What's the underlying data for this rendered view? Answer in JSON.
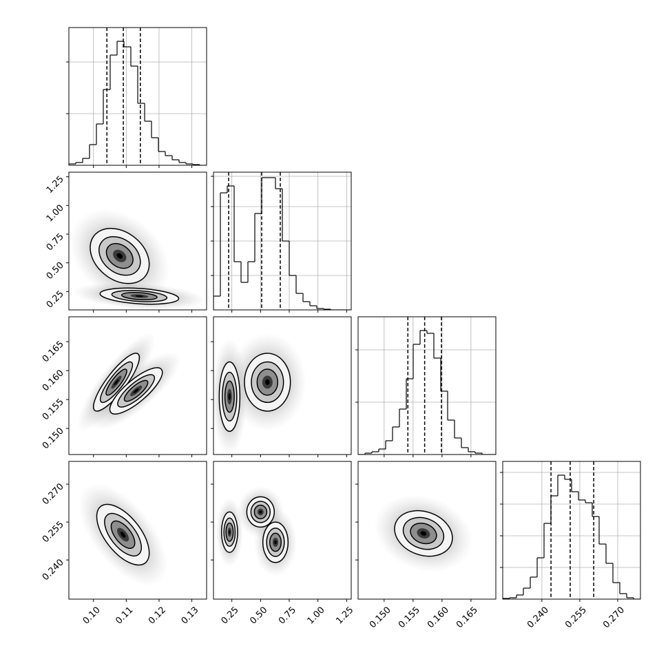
{
  "chart_data": {
    "type": "corner",
    "params": [
      {
        "lim": [
          0.0925,
          0.1345
        ],
        "ticks": [
          {
            "value": 0.1,
            "label": "0.10"
          },
          0.11,
          0.12,
          0.13
        ]
      },
      {
        "lim": [
          0.09,
          1.29
        ],
        "ticks": [
          0.25,
          {
            "value": 0.5,
            "label": "0.50"
          },
          0.75,
          {
            "value": 1,
            "label": "1.00"
          },
          1.25
        ]
      },
      {
        "lim": [
          0.1455,
          0.1693
        ],
        "ticks": [
          {
            "value": 0.15,
            "label": "0.150"
          },
          0.155,
          {
            "value": 0.16,
            "label": "0.160"
          },
          0.165
        ]
      },
      {
        "lim": [
          0.2245,
          0.279
        ],
        "ticks": [
          {
            "value": 0.24,
            "label": "0.240"
          },
          0.255,
          {
            "value": 0.27,
            "label": "0.270"
          }
        ]
      }
    ],
    "histograms": [
      {
        "bins": [
          0.0925,
          0.0946,
          0.0967,
          0.0988,
          0.1009,
          0.103,
          0.1051,
          0.1072,
          0.1093,
          0.1114,
          0.1135,
          0.1156,
          0.1177,
          0.1198,
          0.1219,
          0.124,
          0.1261,
          0.1282,
          0.1303,
          0.1324,
          0.1345
        ],
        "counts": [
          0.01,
          0.02,
          0.05,
          0.15,
          0.3,
          0.55,
          0.8,
          0.9,
          0.86,
          0.72,
          0.45,
          0.32,
          0.2,
          0.1,
          0.07,
          0.04,
          0.02,
          0.01,
          0.005,
          0
        ],
        "quantiles": [
          0.1041,
          0.1091,
          0.1143
        ],
        "ylim": [
          0,
          1
        ],
        "yticks": [
          0.375,
          0.75
        ]
      },
      {
        "bins": [
          0.09,
          0.15,
          0.21,
          0.27,
          0.33,
          0.39,
          0.45,
          0.51,
          0.57,
          0.63,
          0.69,
          0.75,
          0.81,
          0.87,
          0.93,
          0.99,
          1.05,
          1.11,
          1.17,
          1.23,
          1.29
        ],
        "counts": [
          0.1,
          0.85,
          0.9,
          0.35,
          0.2,
          0.35,
          0.7,
          0.96,
          0.96,
          0.88,
          0.5,
          0.25,
          0.12,
          0.06,
          0.03,
          0.01,
          0.005,
          0,
          0,
          0
        ],
        "quantiles": [
          0.222,
          0.51,
          0.672
        ],
        "ylim": [
          0,
          1
        ],
        "yticks": [
          0.25,
          0.5,
          0.75,
          0.97
        ]
      },
      {
        "bins": [
          0.1455,
          0.14669,
          0.14788,
          0.14907,
          0.15026,
          0.15145,
          0.15264,
          0.15383,
          0.15502,
          0.15621,
          0.1574,
          0.15859,
          0.15978,
          0.16097,
          0.16216,
          0.16335,
          0.16454,
          0.16573,
          0.16692,
          0.16811,
          0.1693
        ],
        "counts": [
          0,
          0.01,
          0.02,
          0.04,
          0.1,
          0.2,
          0.33,
          0.55,
          0.8,
          0.9,
          0.88,
          0.7,
          0.46,
          0.25,
          0.12,
          0.05,
          0.02,
          0.01,
          0,
          0
        ],
        "quantiles": [
          0.1541,
          0.157,
          0.1599
        ],
        "ylim": [
          0,
          1
        ],
        "yticks": [
          0.38,
          0.76
        ]
      },
      {
        "bins": [
          0.2245,
          0.227225,
          0.22995,
          0.232675,
          0.2354,
          0.238125,
          0.24085,
          0.243575,
          0.2463,
          0.249025,
          0.25175,
          0.254475,
          0.2572,
          0.259925,
          0.26265,
          0.265375,
          0.2681,
          0.270825,
          0.27355,
          0.276275,
          0.279
        ],
        "counts": [
          0.005,
          0.01,
          0.03,
          0.08,
          0.16,
          0.3,
          0.55,
          0.75,
          0.9,
          0.87,
          0.78,
          0.72,
          0.7,
          0.6,
          0.4,
          0.26,
          0.12,
          0.04,
          0.01,
          0
        ],
        "quantiles": [
          0.2436,
          0.2512,
          0.2605
        ],
        "ylim": [
          0,
          1
        ],
        "yticks": [
          0.23,
          0.46,
          0.69,
          0.92
        ]
      }
    ],
    "pairs": [
      {
        "x": 0,
        "y": 1,
        "modes": [
          {
            "x": 0.108,
            "y": 0.56,
            "sx": 0.0045,
            "sy": 0.12,
            "rho": -0.3
          },
          {
            "x": 0.114,
            "y": 0.21,
            "sx": 0.006,
            "sy": 0.035,
            "rho": -0.3
          }
        ]
      },
      {
        "x": 0,
        "y": 2,
        "modes": [
          {
            "x": 0.107,
            "y": 0.158,
            "sx": 0.0035,
            "sy": 0.0025,
            "rho": 0.85
          },
          {
            "x": 0.113,
            "y": 0.1565,
            "sx": 0.004,
            "sy": 0.002,
            "rho": 0.8
          }
        ]
      },
      {
        "x": 1,
        "y": 2,
        "modes": [
          {
            "x": 0.23,
            "y": 0.1555,
            "sx": 0.045,
            "sy": 0.003,
            "rho": 0
          },
          {
            "x": 0.56,
            "y": 0.158,
            "sx": 0.1,
            "sy": 0.0025,
            "rho": 0
          }
        ]
      },
      {
        "x": 0,
        "y": 3,
        "modes": [
          {
            "x": 0.109,
            "y": 0.25,
            "sx": 0.004,
            "sy": 0.006,
            "rho": -0.6
          }
        ]
      },
      {
        "x": 1,
        "y": 3,
        "modes": [
          {
            "x": 0.23,
            "y": 0.251,
            "sx": 0.035,
            "sy": 0.004,
            "rho": 0
          },
          {
            "x": 0.5,
            "y": 0.259,
            "sx": 0.06,
            "sy": 0.003,
            "rho": 0
          },
          {
            "x": 0.63,
            "y": 0.247,
            "sx": 0.055,
            "sy": 0.004,
            "rho": 0
          }
        ]
      },
      {
        "x": 2,
        "y": 3,
        "modes": [
          {
            "x": 0.1568,
            "y": 0.2505,
            "sx": 0.0025,
            "sy": 0.0045,
            "rho": -0.2
          }
        ]
      }
    ]
  }
}
